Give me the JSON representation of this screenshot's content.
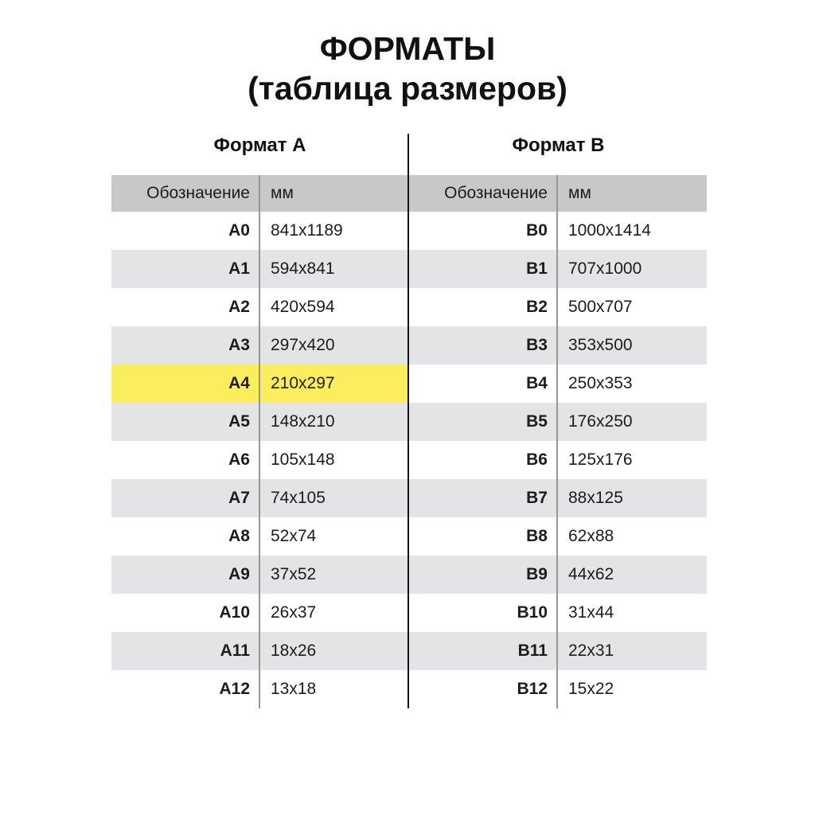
{
  "title": {
    "line1": "ФОРМАТЫ",
    "line2": "(таблица размеров)"
  },
  "format_a": {
    "title": "Формат А",
    "headers": {
      "designation": "Обозначение",
      "unit": "мм"
    },
    "rows": [
      {
        "designation": "A0",
        "size": "841x1189"
      },
      {
        "designation": "A1",
        "size": "594x841"
      },
      {
        "designation": "A2",
        "size": "420x594"
      },
      {
        "designation": "A3",
        "size": "297x420"
      },
      {
        "designation": "A4",
        "size": "210x297",
        "highlighted": true
      },
      {
        "designation": "A5",
        "size": "148x210"
      },
      {
        "designation": "A6",
        "size": "105x148"
      },
      {
        "designation": "A7",
        "size": "74x105"
      },
      {
        "designation": "A8",
        "size": "52x74"
      },
      {
        "designation": "A9",
        "size": "37x52"
      },
      {
        "designation": "A10",
        "size": "26x37"
      },
      {
        "designation": "A11",
        "size": "18x26"
      },
      {
        "designation": "A12",
        "size": "13x18"
      }
    ]
  },
  "format_b": {
    "title": "Формат В",
    "headers": {
      "designation": "Обозначение",
      "unit": "мм"
    },
    "rows": [
      {
        "designation": "B0",
        "size": "1000x1414"
      },
      {
        "designation": "B1",
        "size": "707x1000"
      },
      {
        "designation": "B2",
        "size": "500x707"
      },
      {
        "designation": "B3",
        "size": "353x500"
      },
      {
        "designation": "B4",
        "size": "250x353"
      },
      {
        "designation": "B5",
        "size": "176x250"
      },
      {
        "designation": "B6",
        "size": "125x176"
      },
      {
        "designation": "B7",
        "size": "88x125"
      },
      {
        "designation": "B8",
        "size": "62x88"
      },
      {
        "designation": "B9",
        "size": "44x62"
      },
      {
        "designation": "B10",
        "size": "31x44"
      },
      {
        "designation": "B11",
        "size": "22x31"
      },
      {
        "designation": "B12",
        "size": "15x22"
      }
    ]
  },
  "highlight": {
    "row": "A4",
    "color": "#FAEE5C"
  },
  "colors": {
    "header_bg": "#C8C8C8",
    "stripe_bg": "#E3E4E5",
    "highlight_bg": "#FAEE5C",
    "divider": "#141414",
    "separator": "#969696",
    "text": "#1C1C1C"
  }
}
